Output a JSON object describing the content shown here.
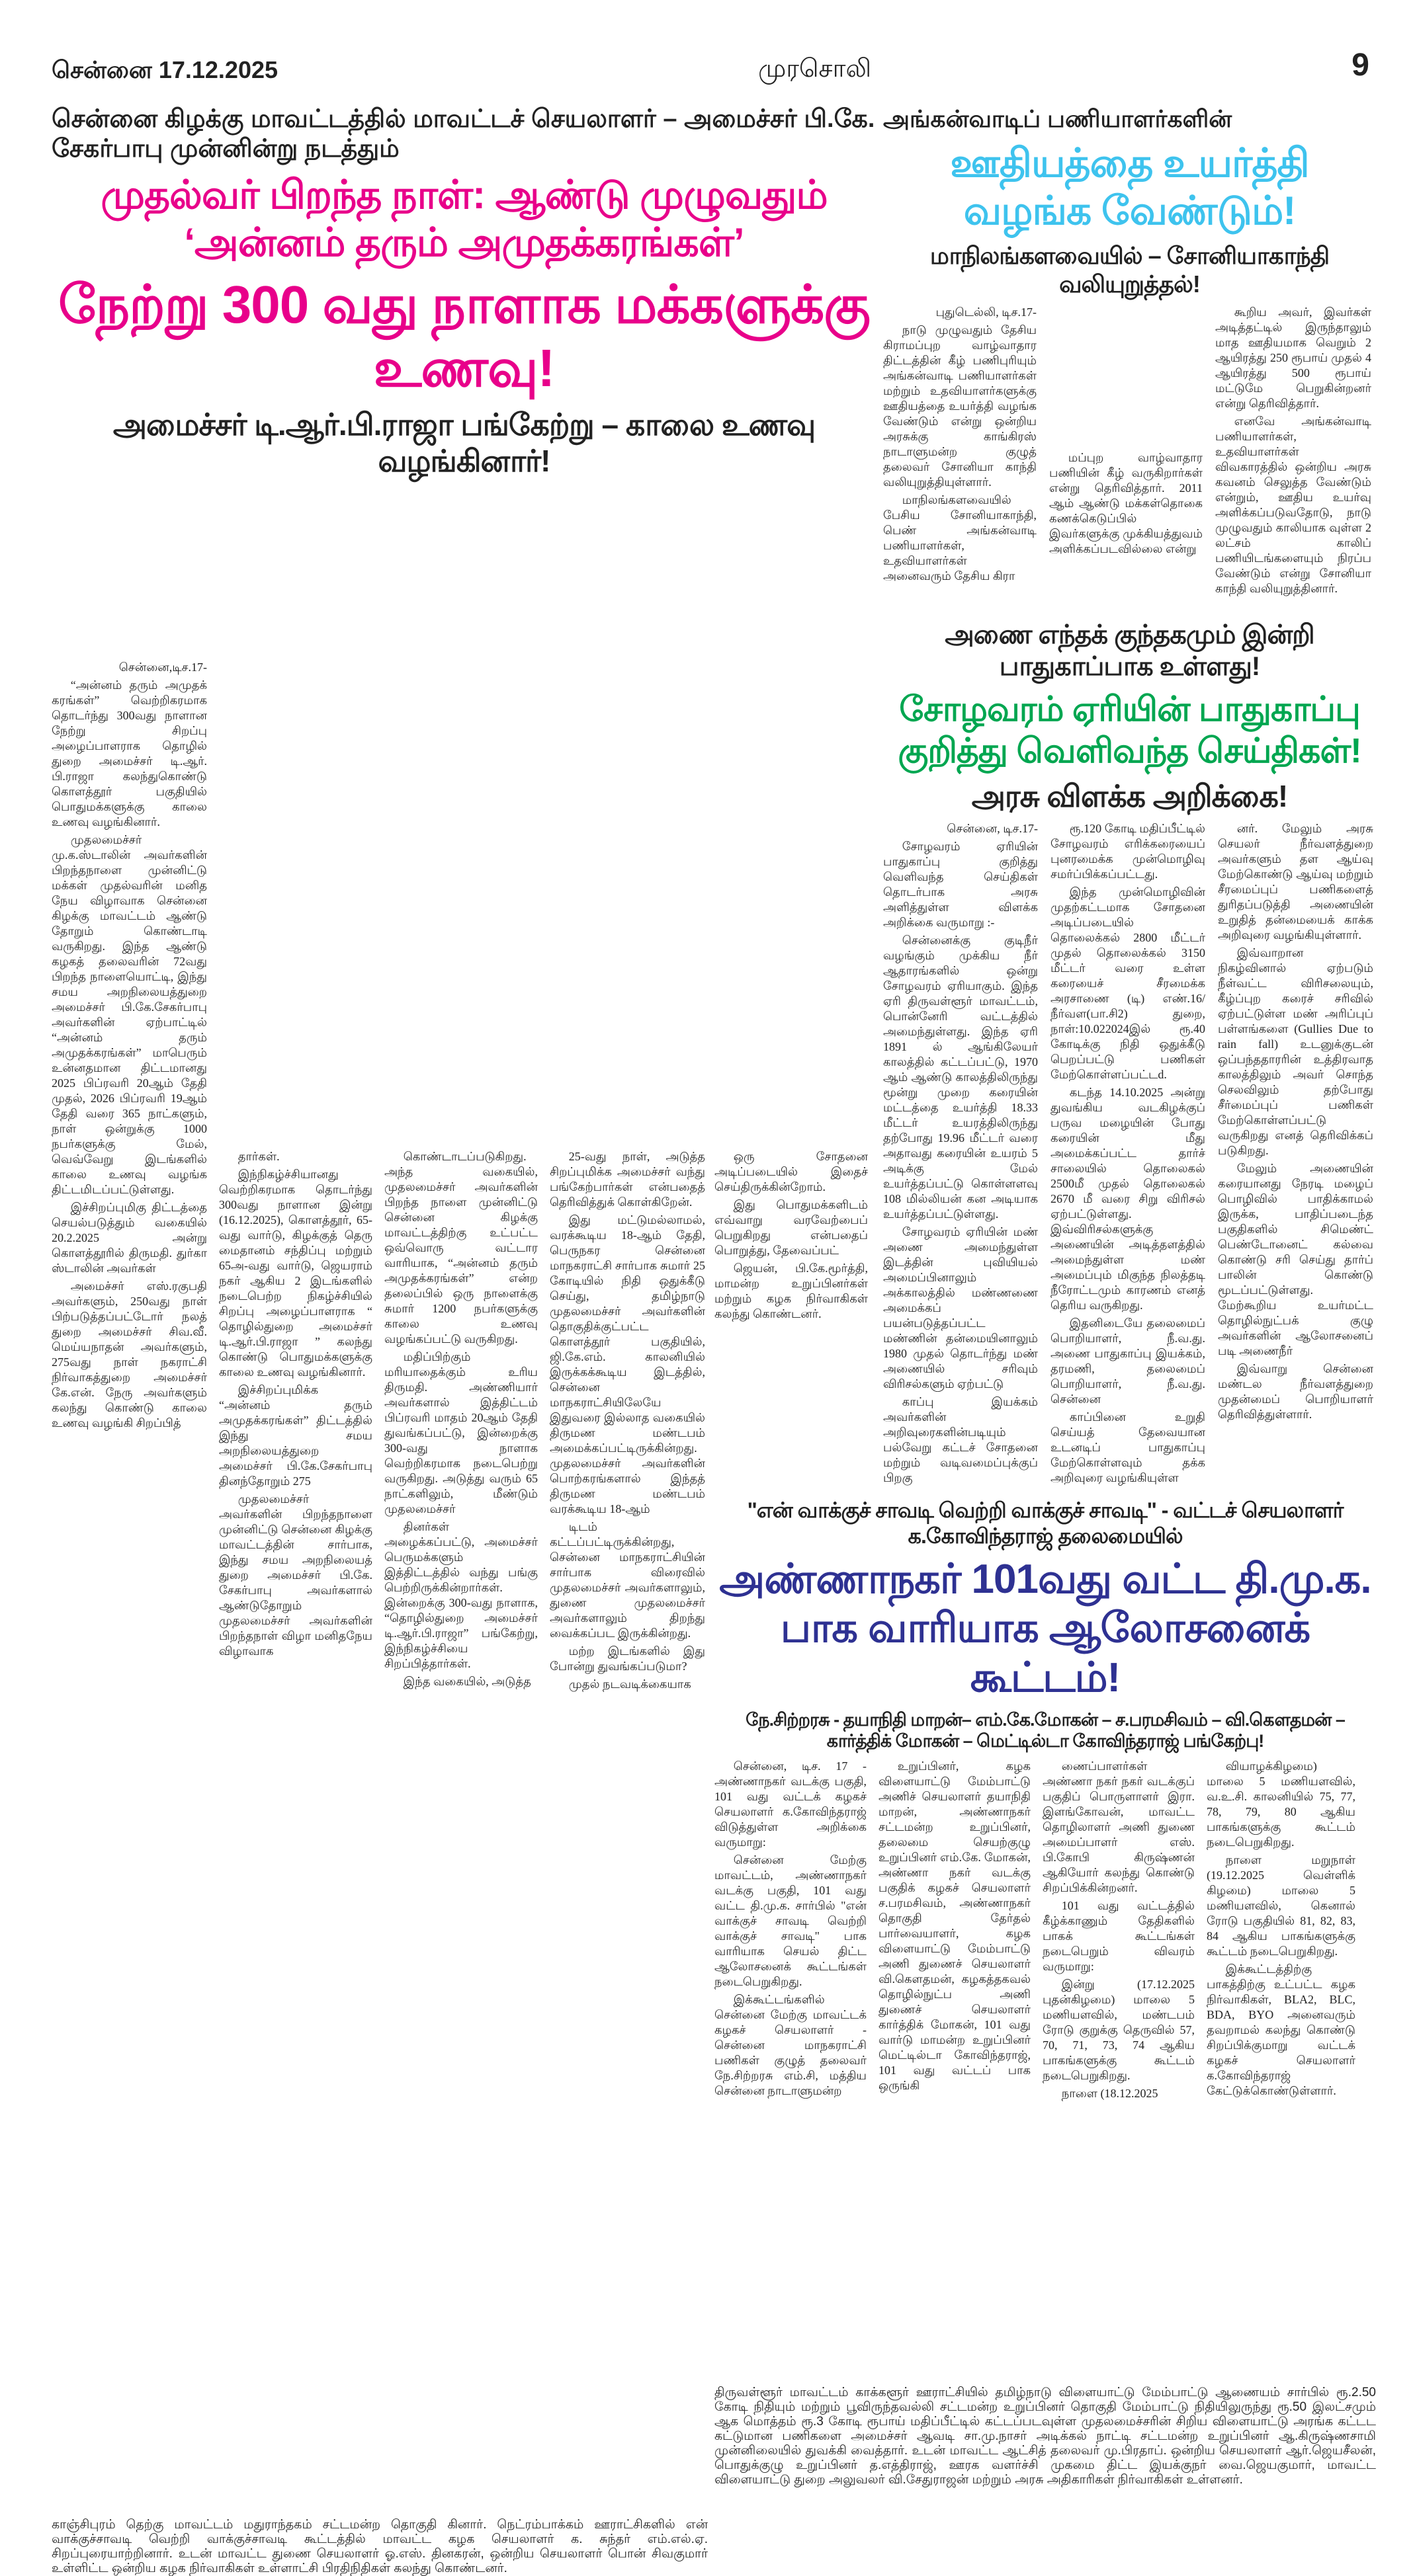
{
  "header": {
    "dateline": "சென்னை 17.12.2025",
    "masthead": "முரசொலி",
    "page_number": "9"
  },
  "colors": {
    "pink": "#e8008a",
    "cyan": "#3ec3ee",
    "green": "#00a650",
    "blue": "#2e3192",
    "text": "#1a1a1a"
  },
  "left_article": {
    "kicker": "சென்னை கிழக்கு மாவட்டத்தில் மாவட்டச் செயலாளர் – அமைச்சர் பி.கே. சேகர்பாபு முன்னின்று நடத்தும்",
    "headline_1": "முதல்வர் பிறந்த நாள்: ஆண்டு முழுவதும் ‘அன்னம் தரும் அமுதக்கரங்கள்’",
    "headline_2": "நேற்று 300 வது நாளாக மக்களுக்கு உணவு!",
    "subheadline": "அமைச்சர் டி.ஆர்.பி.ராஜா பங்கேற்று – காலை உணவு வழங்கினார்!",
    "columns": [
      {
        "top": [
          {
            "dateline": true,
            "text": "சென்னை,டிச.17-"
          },
          {
            "text": "“அன்னம் தரும் அமுதக் கரங்கள்” வெற்றிகரமாக தொடர்ந்து 300வது நாளான நேற்று சிறப்பு அழைப்பாளராக தொழில் துறை அமைச்சர் டி.ஆர். பி.ராஜா கலந்துகொண்டு கொளத்தூர் பகுதியில் பொதுமக்களுக்கு காலை உணவு வழங்கினார்."
          },
          {
            "text": "முதலமைச்சர் மு.க.ஸ்டாலின் அவர்களின் பிறந்தநாளை முன்னிட்டு மக்கள் முதல்வரின் மனித நேய விழாவாக சென்னை கிழக்கு மாவட்டம் ஆண்டு தோறும் கொண்டாடி வருகிறது. இந்த ஆண்டு கழகத் தலைவரின் 72வது பிறந்த நாளையொட்டி, இந்து சமய அறநிலையத்துறை அமைச்சர் பி.கே.சேகர்பாபு அவர்களின் ஏற்பாட்டில் “அன்னம் தரும் அமுதக்கரங்கள்” மாபெரும் உன்னதமான திட்டமானது 2025 பிப்ரவரி 20ஆம் தேதி முதல், 2026 பிப்ரவரி 19ஆம் தேதி வரை 365 நாட்களும், நாள் ஒன்றுக்கு 1000 நபர்களுக்கு மேல், வெவ்வேறு இடங்களில் காலை உணவு வழங்க திட்டமிடப்பட்டுள்ளது."
          },
          {
            "text": "இச்சிறப்புமிகு திட்டத்தை செயல்படுத்தும் வகையில் 20.2.2025 அன்று கொளத்தூரில் திருமதி. துர்கா ஸ்டாலின் அவர்கள்"
          }
        ],
        "bottom": [
          {
            "text": "அமைச்சர் எஸ்.ரகுபதி அவர்களும், 250வது நாள் பிற்படுத்தப்பட்டோர் நலத் துறை அமைச்சர் சிவ.வீ. மெய்யநாதன் அவர்களும், 275வது நாள் நகராட்சி நிர்வாகத்துறை அமைச்சர் கே.என். நேரு அவர்களும் கலந்து கொண்டு காலை உணவு வழங்கி சிறப்பித்"
          }
        ]
      },
      {
        "top": [
          {
            "text": "தார்கள்."
          },
          {
            "text": "இந்நிகழ்ச்சியானது வெற்றிகரமாக தொடர்ந்து 300வது நாளான இன்று (16.12.2025), கொளத்தூர், 65-வது வார்டு, கிழக்குத் தெரு மைதானம் சந்திப்பு மற்றும் 65அ-வது வார்டு, ஜெயராம் நகர் ஆகிய 2 இடங்களில் நடைபெற்ற நிகழ்ச்சியில் சிறப்பு அழைப்பாளராக “ தொழில்துறை அமைச்சர் டி.ஆர்.பி.ராஜா ” கலந்து கொண்டு பொதுமக்களுக்கு காலை உணவு வழங்கினார்."
          },
          {
            "text": "இச்சிறப்புமிக்க “அன்னம் தரும் அமுதக்கரங்கள்” திட்டத்தில் இந்து சமய அறநிலையத்துறை அமைச்சர் பி.கே.சேகர்பாபு தினந்தோறும் 275"
          }
        ],
        "bottom": [
          {
            "text": "முதலமைச்சர் அவர்களின் பிறந்தநாளை முன்னிட்டு சென்னை கிழக்கு மாவட்டத்தின் சார்பாக, இந்து சமய அறநிலையத் துறை அமைச்சர் பி.கே. சேகர்பாபு அவர்களால் ஆண்டுதோறும் முதலமைச்சர் அவர்களின் பிறந்தநாள் விழா மனிதநேய விழாவாக"
          }
        ]
      },
      {
        "top": [
          {
            "text": "கொண்டாடப்படுகிறது. அந்த வகையில், முதலமைச்சர் அவர்களின் பிறந்த நாளை முன்னிட்டு சென்னை கிழக்கு மாவட்டத்திற்கு உட்பட்ட ஒவ்வொரு வட்டார வாரியாக, “அன்னம் தரும் அமுதக்கரங்கள்” என்ற தலைப்பில் ஒரு நாளைக்கு சுமார் 1200 நபர்களுக்கு காலை உணவு வழங்கப்பட்டு வருகிறது."
          },
          {
            "text": "மதிப்பிற்கும் மரியாதைக்கும் உரிய திருமதி. அண்ணியார் அவர்களால் இத்திட்டம் பிப்ரவரி மாதம் 20ஆம் தேதி துவங்கப்பட்டு, இன்றைக்கு 300-வது நாளாக வெற்றிகரமாக நடைபெற்று வருகிறது. அடுத்து வரும் 65 நாட்களிலும், மீண்டும் முதலமைச்சர்"
          }
        ],
        "bottom": [
          {
            "text": "தினர்கள் அழைக்கப்பட்டு, அமைச்சர் பெருமக்களும் இத்திட்டத்தில் வந்து பங்கு பெற்றிருக்கின்றார்கள். இன்றைக்கு 300-வது நாளாக, “தொழில்துறை அமைச்சர் டி.ஆர்.பி.ராஜா” பங்கேற்று, இந்நிகழ்ச்சியை சிறப்பித்தார்கள்."
          },
          {
            "text": "இந்த வகையில், அடுத்த"
          }
        ]
      },
      {
        "top": [
          {
            "text": "25-வது நாள், அடுத்த சிறப்புமிக்க அமைச்சர் வந்து பங்கேற்பார்கள் என்பதைத் தெரிவித்துக் கொள்கிறேன்."
          },
          {
            "text": "இது மட்டுமல்லாமல், வரக்கூடிய 18-ஆம் தேதி, பெருநகர சென்னை மாநகராட்சி சார்பாக சுமார் 25 கோடியில் நிதி ஒதுக்கீடு செய்து, தமிழ்நாடு முதலமைச்சர் அவர்களின் தொகுதிக்குட்பட்ட கொளத்தூர் பகுதியில், ஜி.கே.எம். காலனியில் இருக்கக்கூடிய இடத்தில், சென்னை மாநகராட்சியிலேயே இதுவரை இல்லாத வகையில் திருமண மண்டபம் அமைக்கப்பட்டிருக்கின்றது. முதலமைச்சர் அவர்களின் பொற்கரங்களால் இந்தத் திருமண மண்டபம் வரக்கூடிய 18-ஆம்"
          }
        ],
        "bottom": [
          {
            "text": "டிடம் கட்டப்பட்டிருக்கின்றது, சென்னை மாநகராட்சியின் சார்பாக விரைவில் முதலமைச்சர் அவர்களாலும், துணை முதலமைச்சர் அவர்களாலும் திறந்து வைக்கப்பட இருக்கின்றது."
          },
          {
            "text": "மற்ற இடங்களில் இது போன்று துவங்கப்படுமா?"
          },
          {
            "text": "முதல் நடவடிக்கையாக"
          }
        ]
      },
      {
        "top": [
          {
            "text": "ஒரு சோதனை அடிப்படையில் இதைச் செய்திருக்கின்றோம்."
          },
          {
            "text": "இது பொதுமக்களிடம் எவ்வாறு வரவேற்பைப் பெறுகிறது என்பதைப் பொறுத்து, தேவைப்பட்"
          }
        ],
        "bottom": [
          {
            "text": "ஜெயன், பி.கே.மூர்த்தி, மாமன்ற உறுப்பினர்கள் மற்றும் கழக நிர்வாகிகள் கலந்து கொண்டனர்."
          }
        ]
      }
    ],
    "photo_caption": "காஞ்சிபுரம் தெற்கு மாவட்டம் மதுராந்தகம் சட்டமன்ற தொகுதி கினார். நெட்ரம்பாக்கம் ஊராட்சிகளில் என் வாக்குச்சாவடி வெற்றி வாக்குச்சாவடி கூட்டத்தில் மாவட்ட கழக செயலாளர் க. சுந்தர் எம்.எல்.ஏ. சிறப்புரையாற்றினார். உடன் மாவட்ட துணை செயலாளர் ஓ.எஸ். தினகரன், ஒன்றிய செயலாளர் பொன் சிவகுமார் உள்ளிட்ட ஒன்றிய கழக நிர்வாகிகள் உள்ளாட்சி பிரதிநிதிகள் கலந்து கொண்டனர்."
  },
  "anganwadi_article": {
    "kicker": "அங்கன்வாடிப் பணியாளர்களின்",
    "headline": "ஊதியத்தை உயர்த்தி வழங்க வேண்டும்!",
    "subheadline": "மாநிலங்களவையில் – சோனியாகாந்தி வலியுறுத்தல்!",
    "columns": [
      {
        "top": [
          {
            "dateline": true,
            "text": "புதுடெல்லி, டிச.17-"
          },
          {
            "text": "நாடு முழுவதும் தேசிய கிராமப்புற வாழ்வாதார திட்டத்தின் கீழ் பணிபுரியும் அங்கன்வாடி பணியாளர்கள் மற்றும் உதவியாளர்களுக்கு ஊதியத்தை உயர்த்தி வழங்க வேண்டும் என்று ஒன்றிய அரசுக்கு காங்கிரஸ் நாடாளுமன்ற குழுத் தலைவர் சோனியா காந்தி வலியுறுத்தியுள்ளார்."
          },
          {
            "text": "மாநிலங்களவையில் பேசிய சோனியாகாந்தி, பெண் அங்கன்வாடி பணியாளர்கள், உதவியாளர்கள் அனைவரும் தேசிய கிரா"
          }
        ],
        "bottom": []
      },
      {
        "top": [
          {
            "text": "மப்புற வாழ்வாதார பணியின் கீழ் வருகிறார்கள் என்று தெரிவித்தார். 2011 ஆம் ஆண்டு மக்கள்தொகை கணக்கெடுப்பில் இவர்களுக்கு முக்கியத்துவம் அளிக்கப்படவில்லை என்று"
          }
        ],
        "bottom": []
      },
      {
        "top": [
          {
            "text": "கூறிய அவர், இவர்கள் அடித்தட்டில் இருந்தாலும் மாத ஊதியமாக வெறும் 2 ஆயிரத்து 250 ரூபாய் முதல் 4 ஆயிரத்து 500 ரூபாய் மட்டுமே பெறுகின்றனர் என்று தெரிவித்தார்."
          },
          {
            "text": "எனவே அங்கன்வாடி பணியாளர்கள், உதவியாளர்கள் விவகாரத்தில் ஒன்றிய அரசு கவனம் செலுத்த வேண்டும் என்றும், ஊதிய உயர்வு அளிக்கப்படுவதோடு, நாடு முழுவதும் காலியாக வுள்ள 2 லட்சம் காலிப் பணியிடங்களையும் நிரப்ப வேண்டும் என்று சோனியா காந்தி வலியுறுத்தினார்."
          }
        ],
        "bottom": []
      }
    ]
  },
  "cholavaram_article": {
    "kicker": "அணை எந்தக் குந்தகமும் இன்றி பாதுகாப்பாக உள்ளது!",
    "headline": "சோழவரம் ஏரியின் பாதுகாப்பு குறித்து வெளிவந்த செய்திகள்!",
    "subheadline": "அரசு விளக்க அறிக்கை!",
    "columns": [
      {
        "top": [
          {
            "dateline": true,
            "text": "சென்னை, டிச.17-"
          },
          {
            "text": "சோழவரம் ஏரியின் பாதுகாப்பு குறித்து வெளிவந்த செய்திகள் தொடர்பாக அரசு அளித்துள்ள விளக்க அறிக்கை வருமாறு :-"
          },
          {
            "text": "சென்னைக்கு குடிநீர் வழங்கும் முக்கிய நீர் ஆதாரங்களில் ஒன்று சோழவரம் ஏரியாகும். இந்த ஏரி திருவள்ளூர் மாவட்டம், பொன்னேரி வட்டத்தில் அமைந்துள்ளது. இந்த ஏரி 1891 ல் ஆங்கிலேயர் காலத்தில் கட்டப்பட்டு, 1970 ஆம் ஆண்டு காலத்திலிருந்து மூன்று முறை கரையின் மட்டத்தை உயர்த்தி 18.33 மீட்டர் உயரத்திலிருந்து தற்போது 19.96 மீட்டர் வரை அதாவது கரையின் உயரம் 5 அடிக்கு மேல் உயர்த்தப்பட்டு கொள்ளளவு 108 மில்லியன் கன அடியாக உயர்த்தப்பட்டுள்ளது."
          },
          {
            "text": "சோழவரம் ஏரியின் மண் அணை அமைந்துள்ள இடத்தின் புவியியல் அமைப்பினாலும் அக்காலத்தில் மண்ணணை அமைக்கப் பயன்படுத்தப்பட்ட மண்ணின் தன்மையினாலும் 1980 முதல் தொடர்ந்து மண் அணையில் சரிவும் விரிசல்களும் ஏற்பட்டு"
          }
        ],
        "bottom": [
          {
            "text": "காப்பு இயக்கம் அவர்களின் அறிவுரைகளின்படியும் பல்வேறு கட்டச் சோதனை மற்றும் வடிவமைப்புக்குப் பிறகு"
          }
        ]
      },
      {
        "top": [
          {
            "text": "ரூ.120 கோடி மதிப்பீட்டில் சோழவரம் எரிக்கரையைப் புனரமைக்க முன்மொழிவு சமர்ப்பிக்கப்பட்டது."
          },
          {
            "text": "இந்த முன்மொழிவின் முதற்கட்டமாக சோதனை அடிப்படையில் தொலைக்கல் 2800 மீட்டர் முதல் தொலைக்கல் 3150 மீட்டர் வரை உள்ள கரையைச் சீரமைக்க அரசாணை (டி) எண்.16/ நீர்வள(பா.சி2) துறை, நாள்:10.022024இல் ரூ.40 கோடிக்கு நிதி ஒதுக்கீடு பெறப்பட்டு பணிகள் மேற்கொள்ளப்பட்டd."
          },
          {
            "text": "கடந்த 14.10.2025 அன்று துவங்கிய வடகிழக்குப் பருவ மழையின் போது கரையின் மீது அமைக்கப்பட்ட தார்ச் சாலையில் தொலைகல் 2500மீ முதல் தொலைகல் 2670 மீ வரை சிறு விரிசல் ஏற்பட்டுள்ளது. இவ்விரிசல்களுக்கு அணையின் அடித்தளத்தில் அமைந்துள்ள மண் அமைப்பும் மிகுந்த நிலத்தடி நீரோட்டமும் காரணம் எனத் தெரிய வருகிறது."
          },
          {
            "text": "இதனிடையே தலைமைப் பொறியாளர், நீ.வ.து. அணை பாதுகாப்பு இயக்கம், தரமணி, தலைமைப் பொறியாளர், நீ.வ.து. சென்னை"
          }
        ],
        "bottom": [
          {
            "text": "காப்பினை உறுதி செய்யத் தேவையான உடனடிப் பாதுகாப்பு மேற்கொள்ளவும் தக்க அறிவுரை வழங்கியுள்ள"
          }
        ]
      },
      {
        "top": [
          {
            "text": "னர். மேலும் அரசு செயலர் நீர்வளத்துறை அவர்களும் தள ஆய்வு மேற்கொண்டு ஆய்வு மற்றும் சீரமைப்புப் பணிகளைத் துரிதப்படுத்தி அணையின் உறுதித் தன்மையைக் காக்க அறிவுரை வழங்கியுள்ளார்."
          },
          {
            "text": "இவ்வாறான நிகழ்வினால் ஏற்படும் நீள்வட்ட விரிசலையும், கீழ்ப்புற கரைச் சரிவில் ஏற்பட்டுள்ள மண் அரிப்புப் பள்ளங்களை (Gullies Due to rain fall) உடனுக்குடன் ஒப்பந்ததாரரின் உத்திரவாத காலத்திலும் அவர் சொந்த செலவிலும் தற்போது சீர்மைப்புப் பணிகள் மேற்கொள்ளப்பட்டு வருகிறது எனத் தெரிவிக்கப் படுகிறது."
          },
          {
            "text": "மேலும் அணையின் கரையானது நேரடி மழைப் பொழிவில் பாதிக்காமல் இருக்க, பாதிப்படைந்த பகுதிகளில் சிமெண்ட் பெண்டோனைட் கல்வை கொண்டு சரி செய்து தார்ப் பாலின் கொண்டு மூடப்பட்டுள்ளது. மேற்கூறிய உயர்மட்ட தொழில்நுட்பக் குழு அவர்களின் ஆலோசனைப் படி அணைநீர்"
          }
        ],
        "bottom": [
          {
            "text": "இவ்வாறு சென்னை மண்டல நீர்வளத்துறை முதன்மைப் பொறியாளர் தெரிவித்துள்ளார்."
          }
        ]
      }
    ]
  },
  "annanagar_article": {
    "kicker": "\"என் வாக்குச் சாவடி வெற்றி வாக்குச் சாவடி\" - வட்டச் செயலாளர் க.கோவிந்தராஜ் தலைமையில்",
    "headline": "அண்ணாநகர் 101வது வட்ட தி.மு.க. பாக வாரியாக ஆலோசனைக் கூட்டம்!",
    "subheadline": "நே.சிற்றரசு - தயாநிதி மாறன்– எம்.கே.மோகன் – ச.பரமசிவம் – வி.கௌதமன் – கார்த்திக் மோகன் – மெட்டில்டா கோவிந்தராஜ் பங்கேற்பு!",
    "columns": [
      {
        "top": [
          {
            "text": "சென்னை, டிச. 17 - அண்ணாநகர் வடக்கு பகுதி, 101 வது வட்டக் கழகச் செயலாளர் க.கோவிந்தராஜ் விடுத்துள்ள அறிக்கை வருமாறு:"
          },
          {
            "text": "சென்னை மேற்கு மாவட்டம், அண்ணாநகர் வடக்கு பகுதி, 101 வது வட்ட தி.மு.க. சார்பில் \"என் வாக்குச் சாவடி வெற்றி வாக்குச் சாவடி\" பாக வாரியாக செயல் திட்ட ஆலோசனைக் கூட்டங்கள் நடைபெறுகிறது."
          },
          {
            "text": "இக்கூட்டங்களில் சென்னை மேற்கு மாவட்டக் கழகச் செயலாளர் - சென்னை மாநகராட்சி பணிகள் குழுத் தலைவர் நே.சிற்றரசு எம்.சி, மத்திய சென்னை நாடாளுமன்ற"
          }
        ],
        "bottom": []
      },
      {
        "top": [
          {
            "text": "உறுப்பினர், கழக விளையாட்டு மேம்பாட்டு அணிச் செயலாளர் தயாநிதி மாறன், அண்ணாநகர் சட்டமன்ற உறுப்பினர், தலைமை செயற்குழு உறுப்பினர் எம்.கே. மோகன், அண்ணா நகர் வடக்கு பகுதிக் கழகச் செயலாளர் ச.பரமசிவம், அண்ணாநகர் தொகுதி தேர்தல் பார்வையாளர், கழக விளையாட்டு மேம்பாட்டு அணி துணைச் செயலாளர் வி.கௌதமன், கழகத்தகவல் தொழில்நுட்ப அணி துணைச் செயலாளர் கார்த்திக் மோகன், 101 வது வார்டு மாமன்ற உறுப்பினர் மெட்டில்டா கோவிந்தராஜ், 101 வது வட்டப் பாக ஒருங்கி"
          }
        ],
        "bottom": []
      },
      {
        "top": [
          {
            "text": "ணைப்பாளர்கள் அண்ணா நகர் நகர் வடக்குப் பகுதிப் பொருளாளர் இரா. இளங்கோவன், மாவட்ட தொழிலாளர் அணி துணை அமைப்பாளர் எஸ். பி.கோபி கிருஷ்ணன் ஆகியோர் கலந்து கொண்டு சிறப்பிக்கின்றனர்."
          },
          {
            "text": "101 வது வட்டத்தில் கீழ்க்காணும் தேதிகளில் பாகக் கூட்டங்கள் நடைபெறும் விவரம் வருமாறு:"
          },
          {
            "text": "இன்று (17.12.2025 புதன்கிழமை) மாலை 5 மணியளவில், மண்டபம் ரோடு குறுக்கு தெருவில் 57, 70, 71, 73, 74 ஆகிய பாகங்களுக்கு கூட்டம் நடைபெறுகிறது."
          },
          {
            "text": "நாளை (18.12.2025"
          }
        ],
        "bottom": []
      },
      {
        "top": [
          {
            "text": "வியாழக்கிழமை) மாலை 5 மணியளவில், வ.உ.சி. காலனியில் 75, 77, 78, 79, 80 ஆகிய பாகங்களுக்கு கூட்டம் நடைபெறுகிறது."
          },
          {
            "text": "நாளை மறுநாள் (19.12.2025 வெள்ளிக் கிழமை) மாலை 5 மணியளவில், கெனால் ரோடு பகுதியில் 81, 82, 83, 84 ஆகிய பாகங்களுக்கு கூட்டம் நடைபெறுகிறது."
          },
          {
            "text": "இக்கூட்டத்திற்கு பாகத்திற்கு உட்பட்ட கழக நிர்வாகிகள், BLA2, BLC, BDA, BYO அனைவரும் தவறாமல் கலந்து கொண்டு சிறப்பிக்குமாறு வட்டக் கழகச் செயலாளர் க.கோவிந்தராஜ் கேட்டுக்கொண்டுள்ளார்."
          }
        ],
        "bottom": []
      }
    ],
    "photo_caption": "திருவள்ளூர் மாவட்டம் காக்களூர் ஊராட்சியில் தமிழ்நாடு விளையாட்டு மேம்பாட்டு ஆணையம் சார்பில் ரூ.2.50 கோடி நிதியும் மற்றும் பூவிருந்தவல்லி சட்டமன்ற உறுப்பினர் தொகுதி மேம்பாட்டு நிதியிலுருந்து ரூ.50 இலட்சமும் ஆக மொத்தம் ரூ.3 கோடி ரூபாய் மதிப்பீட்டில் கட்டப்படவுள்ள முதலமைச்சரின் சிறிய விளையாட்டு அரங்க கட்டட கட்டுமான பணிகளை அமைச்சர் ஆவடி சா.மு.நாசர் அடிக்கல் நாட்டி சட்டமன்ற உறுப்பினர் ஆ.கிருஷ்ணசாமி முன்னிலையில் துவக்கி வைத்தார். உடன் மாவட்ட ஆட்சித் தலைவர் மு.பிரதாப். ஒன்றிய செயலாளர் ஆர்.ஜெயசீலன், பொதுக்குழு உறுப்பினர் த.எத்திராஜ், ஊரக வளர்ச்சி முகமை திட்ட இயக்குநர் வை.ஜெயகுமார், மாவட்ட விளையாட்டு துறை அலுவலர் வி.சேதுராஜன் மற்றும் அரசு அதிகாரிகள் நிர்வாகிகள் உள்ளனர்."
  }
}
